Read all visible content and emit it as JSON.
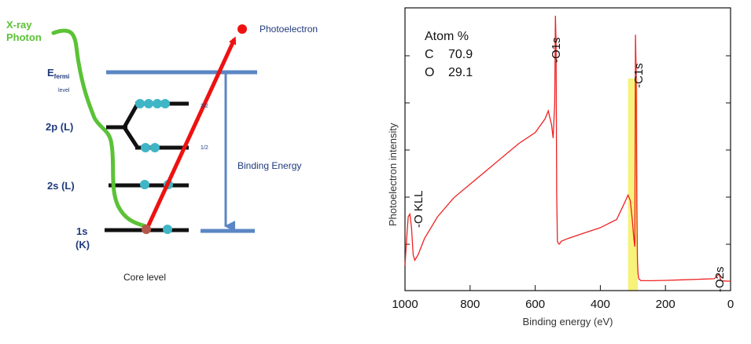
{
  "diagram": {
    "photon_label_line1": "X-ray",
    "photon_label_line2": "Photon",
    "photoelectron_label": "Photoelectron",
    "efermi_main": "E",
    "efermi_sub": "fermi",
    "efermi_level": "level",
    "level_2p": "2p (L)",
    "level_2s": "2s (L)",
    "level_1s": "1s",
    "level_1s_shell": "(K)",
    "sublevel_32": "3/2",
    "sublevel_12": "1/2",
    "binding_energy_label": "Binding Energy",
    "caption": "Core level",
    "colors": {
      "photon": "#5bc236",
      "arrow": "#ee1111",
      "level_line": "#5b86c4",
      "electron": "#3fb6c6",
      "electron_hole": "#b5584a",
      "text_navy": "#1f3a7a"
    }
  },
  "chart_data": {
    "type": "line",
    "xlabel": "Binding energy (eV)",
    "ylabel": "Photoelectron intensity",
    "xlim": [
      1000,
      0
    ],
    "x_reversed": true,
    "xticks": [
      "1000",
      "800",
      "600",
      "400",
      "200",
      "0"
    ],
    "grid": false,
    "series_color": "#ee2222",
    "highlight_color": "#f7f27a",
    "highlight_range": [
      315,
      285
    ],
    "atom_table": {
      "title": "Atom %",
      "rows": [
        {
          "element": "C",
          "value": "70.9"
        },
        {
          "element": "O",
          "value": "29.1"
        }
      ]
    },
    "peak_labels": [
      "-O KLL",
      "-O1s",
      "-C1s",
      "-O2s"
    ],
    "series": [
      {
        "x": [
          1000,
          995,
          990,
          985,
          980,
          975,
          970,
          960,
          940,
          900,
          850,
          800,
          750,
          700,
          650,
          600,
          570,
          560,
          550,
          545,
          540,
          538,
          536,
          534,
          532,
          528,
          525,
          520,
          500,
          450,
          400,
          350,
          330,
          315,
          308,
          302,
          297,
          294,
          292,
          290,
          288,
          286,
          284,
          282,
          280,
          275,
          260,
          240,
          200,
          150,
          100,
          50,
          35,
          30,
          25,
          20,
          10,
          0
        ],
        "y": [
          8,
          18,
          26,
          27,
          22,
          12,
          10,
          12,
          18,
          26,
          33,
          38,
          43,
          48,
          53,
          57,
          62,
          65,
          60,
          55,
          68,
          100,
          90,
          35,
          17,
          16,
          16,
          17,
          18,
          20,
          22,
          25,
          30,
          34,
          32,
          25,
          18,
          15,
          93,
          80,
          30,
          10,
          5,
          3.2,
          3,
          2.5,
          2.5,
          2.5,
          2.6,
          2.8,
          3,
          3.2,
          5,
          2.6,
          2.4,
          2.4,
          2.3,
          2.3
        ]
      }
    ]
  }
}
